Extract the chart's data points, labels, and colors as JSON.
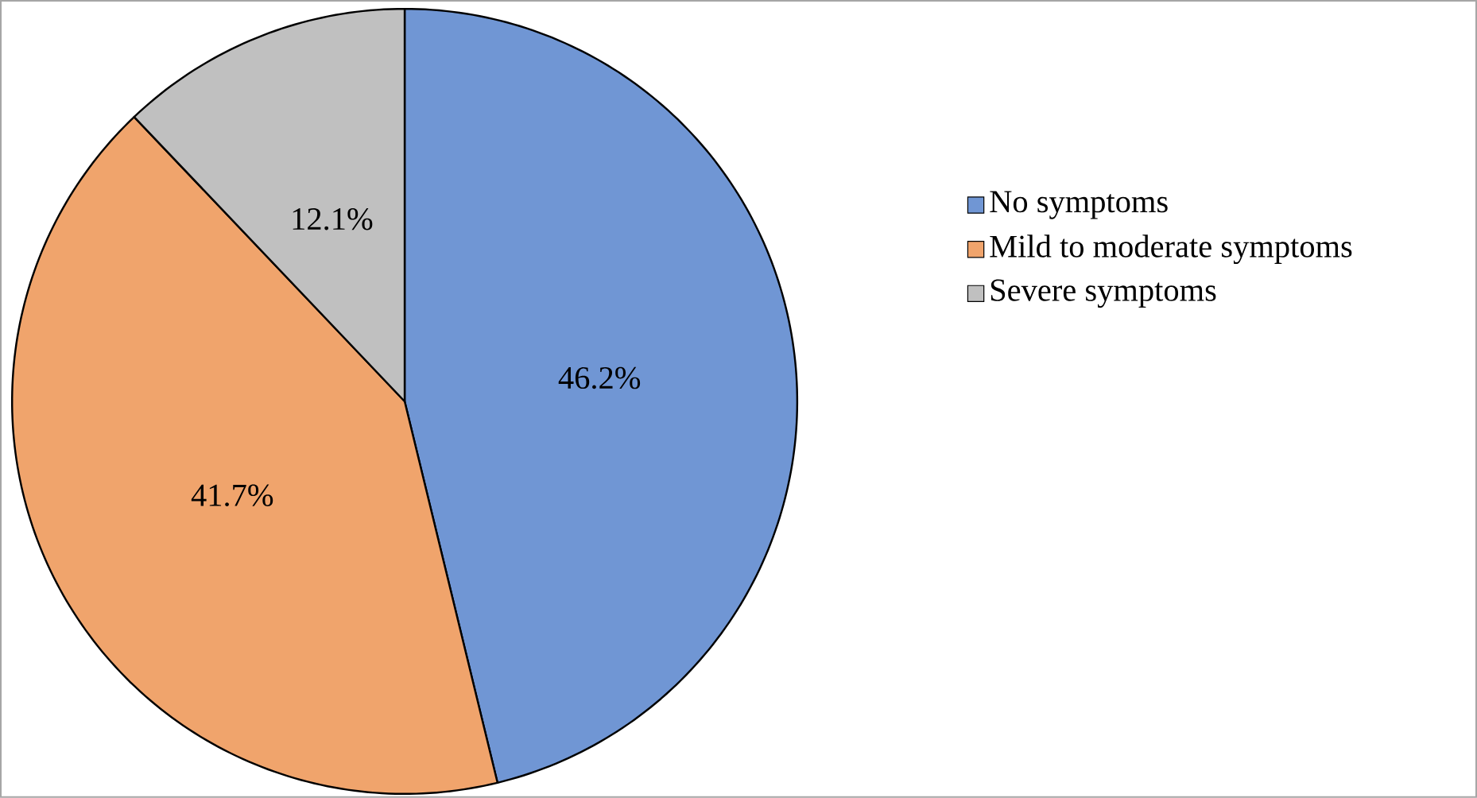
{
  "chart_data": {
    "type": "pie",
    "categories": [
      "No symptoms",
      "Mild to moderate symptoms",
      "Severe symptoms"
    ],
    "values": [
      46.2,
      41.7,
      12.1
    ],
    "colors": [
      "#7096d4",
      "#f0a46c",
      "#c0c0c0"
    ],
    "value_labels": [
      "46.2%",
      "41.7%",
      "12.1%"
    ],
    "legend": "right"
  }
}
